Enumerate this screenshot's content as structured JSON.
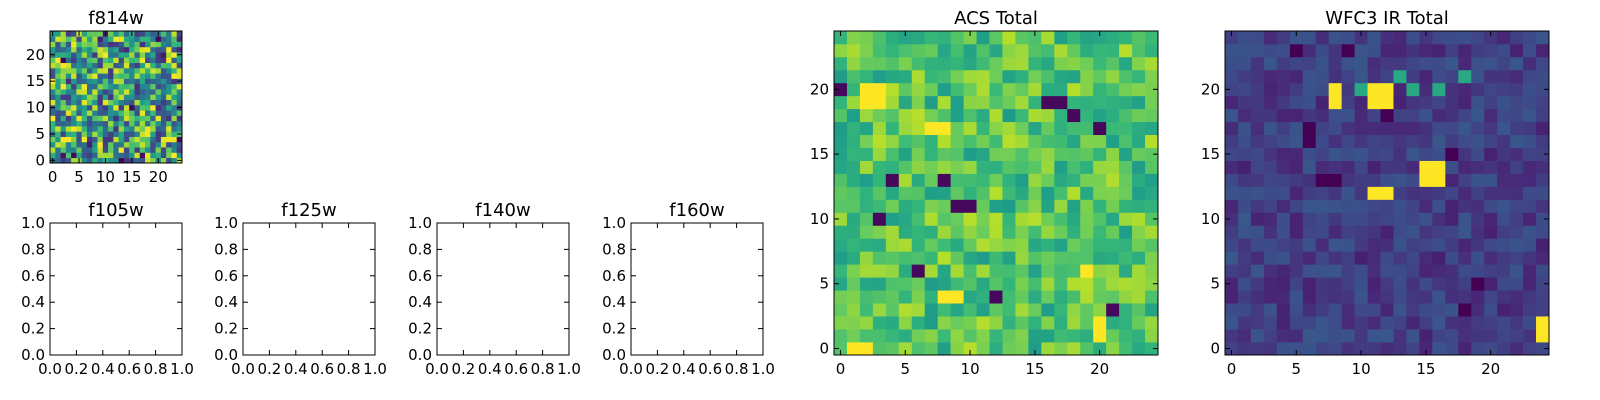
{
  "chart_data": [
    {
      "id": "f814w",
      "type": "heatmap",
      "title": "f814w",
      "grid_size": [
        25,
        25
      ],
      "xlim": [
        -0.5,
        24.5
      ],
      "ylim": [
        -0.5,
        24.5
      ],
      "xticks": [
        0,
        5,
        10,
        15,
        20
      ],
      "yticks": [
        0,
        5,
        10,
        15,
        20
      ],
      "colormap": "viridis",
      "value_range": [
        0,
        1
      ],
      "values_note_visible": "pixel values not labelled",
      "values": "random_seed_814"
    },
    {
      "id": "f105w",
      "type": "empty",
      "title": "f105w",
      "xlim": [
        0,
        1
      ],
      "ylim": [
        0,
        1
      ],
      "xticks": [
        "0.0",
        "0.2",
        "0.4",
        "0.6",
        "0.8",
        "1.0"
      ],
      "yticks": [
        "0.0",
        "0.2",
        "0.4",
        "0.6",
        "0.8",
        "1.0"
      ]
    },
    {
      "id": "f125w",
      "type": "empty",
      "title": "f125w",
      "xlim": [
        0,
        1
      ],
      "ylim": [
        0,
        1
      ],
      "xticks": [
        "0.0",
        "0.2",
        "0.4",
        "0.6",
        "0.8",
        "1.0"
      ],
      "yticks": [
        "0.0",
        "0.2",
        "0.4",
        "0.6",
        "0.8",
        "1.0"
      ]
    },
    {
      "id": "f140w",
      "type": "empty",
      "title": "f140w",
      "xlim": [
        0,
        1
      ],
      "ylim": [
        0,
        1
      ],
      "xticks": [
        "0.0",
        "0.2",
        "0.4",
        "0.6",
        "0.8",
        "1.0"
      ],
      "yticks": [
        "0.0",
        "0.2",
        "0.4",
        "0.6",
        "0.8",
        "1.0"
      ]
    },
    {
      "id": "f160w",
      "type": "empty",
      "title": "f160w",
      "xlim": [
        0,
        1
      ],
      "ylim": [
        0,
        1
      ],
      "xticks": [
        "0.0",
        "0.2",
        "0.4",
        "0.6",
        "0.8",
        "1.0"
      ],
      "yticks": [
        "0.0",
        "0.2",
        "0.4",
        "0.6",
        "0.8",
        "1.0"
      ]
    },
    {
      "id": "acs-total",
      "type": "heatmap",
      "title": "ACS Total",
      "grid_size": [
        25,
        25
      ],
      "xlim": [
        -0.5,
        24.5
      ],
      "ylim": [
        -0.5,
        24.5
      ],
      "xticks": [
        0,
        5,
        10,
        15,
        20
      ],
      "yticks": [
        0,
        5,
        10,
        15,
        20
      ],
      "colormap": "viridis",
      "value_range": [
        0,
        1
      ],
      "background_level": 0.72,
      "dark_cells": [
        [
          0,
          20
        ],
        [
          6,
          6
        ],
        [
          9,
          11
        ],
        [
          10,
          11
        ],
        [
          16,
          19
        ],
        [
          17,
          19
        ],
        [
          18,
          18
        ],
        [
          20,
          17
        ],
        [
          21,
          3
        ],
        [
          3,
          10
        ],
        [
          8,
          13
        ],
        [
          12,
          4
        ],
        [
          4,
          13
        ]
      ],
      "bright_cells": [
        [
          2,
          19
        ],
        [
          3,
          19
        ],
        [
          2,
          20
        ],
        [
          3,
          20
        ],
        [
          7,
          17
        ],
        [
          8,
          17
        ],
        [
          20,
          1
        ],
        [
          20,
          2
        ],
        [
          19,
          6
        ],
        [
          1,
          0
        ],
        [
          2,
          0
        ],
        [
          8,
          4
        ],
        [
          9,
          4
        ]
      ]
    },
    {
      "id": "wfc3-ir-total",
      "type": "heatmap",
      "title": "WFC3 IR Total",
      "grid_size": [
        25,
        25
      ],
      "xlim": [
        -0.5,
        24.5
      ],
      "ylim": [
        -0.5,
        24.5
      ],
      "xticks": [
        0,
        5,
        10,
        15,
        20
      ],
      "yticks": [
        0,
        5,
        10,
        15,
        20
      ],
      "colormap": "viridis",
      "value_range": [
        0,
        1
      ],
      "background_level": 0.18,
      "bright_cells": [
        [
          8,
          20
        ],
        [
          8,
          19
        ],
        [
          11,
          20
        ],
        [
          11,
          19
        ],
        [
          12,
          20
        ],
        [
          12,
          19
        ],
        [
          15,
          14
        ],
        [
          16,
          14
        ],
        [
          15,
          13
        ],
        [
          16,
          13
        ],
        [
          11,
          12
        ],
        [
          12,
          12
        ],
        [
          24,
          2
        ],
        [
          24,
          1
        ]
      ],
      "mid_cells": [
        [
          10,
          20
        ],
        [
          14,
          20
        ],
        [
          18,
          21
        ],
        [
          16,
          20
        ],
        [
          13,
          21
        ]
      ],
      "dark_cells": [
        [
          5,
          23
        ],
        [
          6,
          16
        ],
        [
          6,
          17
        ],
        [
          7,
          13
        ],
        [
          8,
          13
        ],
        [
          17,
          15
        ],
        [
          19,
          5
        ],
        [
          18,
          3
        ],
        [
          12,
          18
        ],
        [
          9,
          23
        ]
      ]
    }
  ]
}
